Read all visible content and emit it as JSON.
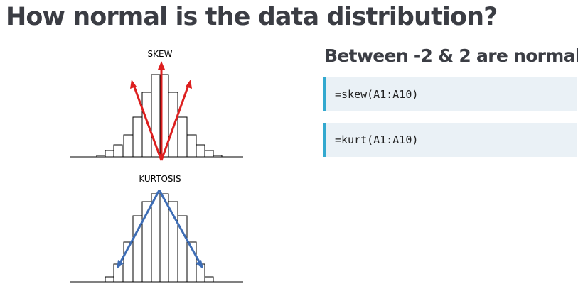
{
  "slide": {
    "title": "How normal is the data distribution?"
  },
  "diagrams": {
    "skew": {
      "label": "SKEW",
      "arrow_color": "#dd1f1f"
    },
    "kurtosis": {
      "label": "KURTOSIS",
      "arrow_color": "#3e6db5"
    }
  },
  "right_panel": {
    "subtitle": "Between -2 & 2 are normal",
    "formulas": [
      "=skew(A1:A10)",
      "=kurt(A1:A10)"
    ],
    "accent_color": "#33a9cf",
    "box_color": "#eaf1f6"
  }
}
